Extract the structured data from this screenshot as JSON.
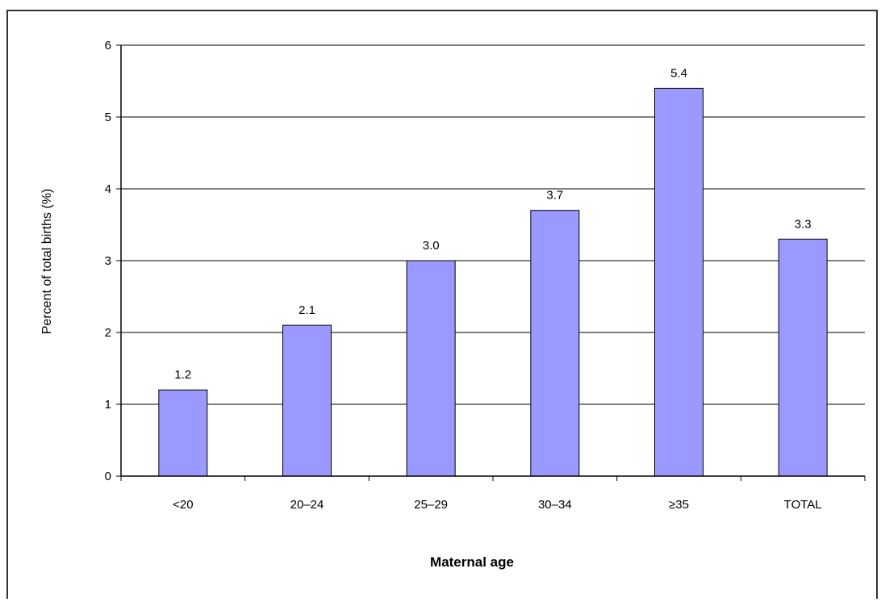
{
  "chart_data": {
    "type": "bar",
    "title": "",
    "xlabel": "Maternal age",
    "ylabel": "Percent of total births (%)",
    "categories": [
      "<20",
      "20–24",
      "25–29",
      "30–34",
      "≥35",
      "TOTAL"
    ],
    "values": [
      1.2,
      2.1,
      3.0,
      3.7,
      5.4,
      3.3
    ],
    "data_labels": [
      "1.2",
      "2.1",
      "3.0",
      "3.7",
      "5.4",
      "3.3"
    ],
    "y_ticks": [
      "0",
      "1",
      "2",
      "3",
      "4",
      "5",
      "6"
    ],
    "ylim": [
      0,
      6
    ],
    "grid": true,
    "legend": "none",
    "colors": {
      "bar_fill": "#9999ff",
      "bar_stroke": "#000000",
      "grid": "#000000"
    }
  }
}
